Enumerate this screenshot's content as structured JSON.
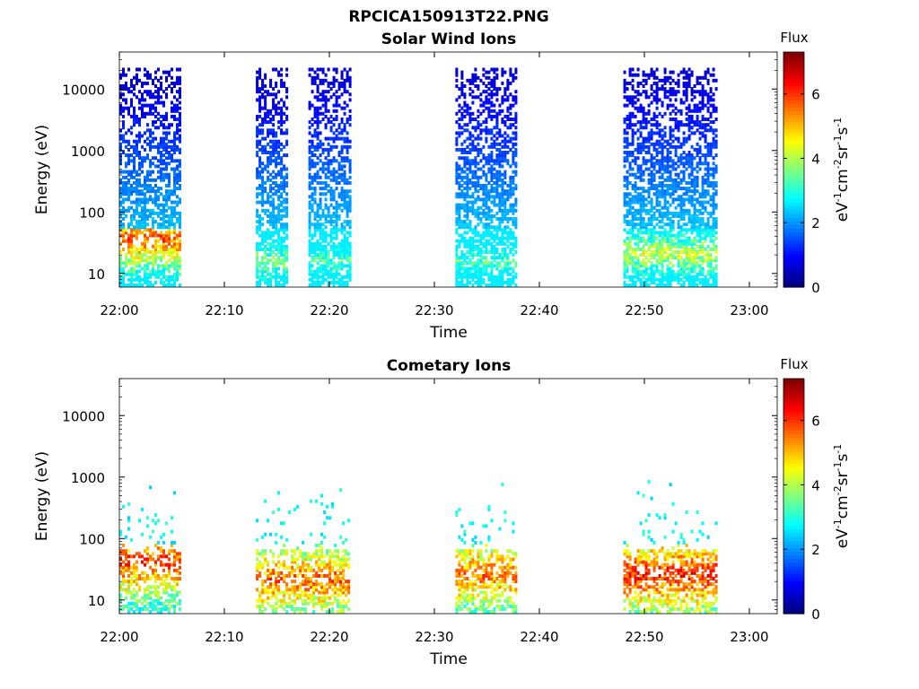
{
  "figure_title": "RPCICA150913T22.PNG",
  "chart_data": [
    {
      "type": "heatmap",
      "title": "Solar Wind Ions",
      "xlabel": "Time",
      "ylabel": "Energy (eV)",
      "x_ticks": [
        "22:00",
        "22:10",
        "22:20",
        "22:30",
        "22:40",
        "22:50",
        "23:00"
      ],
      "y_ticks": [
        "10",
        "100",
        "1000",
        "10000"
      ],
      "y_scale": "log",
      "ylim": [
        6,
        40000
      ],
      "colorbar": {
        "title": "Flux",
        "ticks": [
          "0",
          "2",
          "4",
          "6"
        ],
        "range": [
          0,
          7.3
        ],
        "unit_label": "eV-1cm-2sr-1s-1",
        "colormap": "jet"
      },
      "bursts": [
        {
          "t_start": "22:00",
          "t_end": "22:06",
          "e_min": 6,
          "e_max": 20000,
          "peak_flux": 6.5,
          "peak_energy": 35
        },
        {
          "t_start": "22:13",
          "t_end": "22:16",
          "e_min": 6,
          "e_max": 20000,
          "peak_flux": 4.5,
          "peak_energy": 15
        },
        {
          "t_start": "22:18",
          "t_end": "22:22",
          "e_min": 6,
          "e_max": 20000,
          "peak_flux": 4.0,
          "peak_energy": 15
        },
        {
          "t_start": "22:32",
          "t_end": "22:38",
          "e_min": 6,
          "e_max": 20000,
          "peak_flux": 4.0,
          "peak_energy": 15
        },
        {
          "t_start": "22:48",
          "t_end": "22:57",
          "e_min": 6,
          "e_max": 20000,
          "peak_flux": 5.0,
          "peak_energy": 20
        }
      ]
    },
    {
      "type": "heatmap",
      "title": "Cometary Ions",
      "xlabel": "Time",
      "ylabel": "Energy (eV)",
      "x_ticks": [
        "22:00",
        "22:10",
        "22:20",
        "22:30",
        "22:40",
        "22:50",
        "23:00"
      ],
      "y_ticks": [
        "10",
        "100",
        "1000",
        "10000"
      ],
      "y_scale": "log",
      "ylim": [
        6,
        40000
      ],
      "colorbar": {
        "title": "Flux",
        "ticks": [
          "0",
          "2",
          "4",
          "6"
        ],
        "range": [
          0,
          7.3
        ],
        "unit_label": "eV-1cm-2sr-1s-1",
        "colormap": "jet"
      },
      "bursts": [
        {
          "t_start": "22:00",
          "t_end": "22:06",
          "e_min": 6,
          "e_max": 1000,
          "peak_flux": 6.8,
          "peak_energy": 40
        },
        {
          "t_start": "22:13",
          "t_end": "22:22",
          "e_min": 6,
          "e_max": 1000,
          "peak_flux": 6.5,
          "peak_energy": 20
        },
        {
          "t_start": "22:32",
          "t_end": "22:38",
          "e_min": 6,
          "e_max": 1000,
          "peak_flux": 6.5,
          "peak_energy": 25
        },
        {
          "t_start": "22:48",
          "t_end": "22:57",
          "e_min": 6,
          "e_max": 1000,
          "peak_flux": 7.0,
          "peak_energy": 25
        }
      ]
    }
  ]
}
